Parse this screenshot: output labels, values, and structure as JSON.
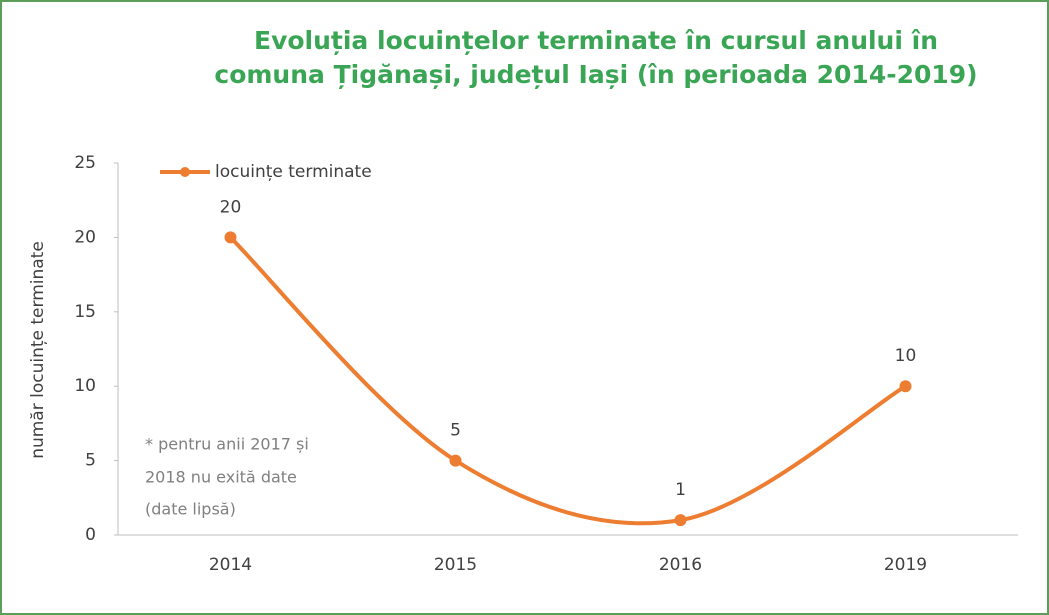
{
  "chart_data": {
    "type": "line",
    "title": [
      "Evoluția locuințelor terminate în cursul anului în",
      "comuna Țigănași, județul Iași (în perioada 2014-2019)"
    ],
    "y_label": "număr locuințe terminate",
    "categories": [
      "2014",
      "2015",
      "2016",
      "2019"
    ],
    "series": [
      {
        "name": "locuințe terminate",
        "color": "#ed7d31",
        "values": [
          20,
          5,
          1,
          10
        ]
      }
    ],
    "ylim": [
      0,
      25
    ],
    "yticks": [
      0,
      5,
      10,
      15,
      20,
      25
    ],
    "grid": false,
    "legend": "top-left",
    "annotation": [
      "* pentru anii 2017 și",
      "2018 nu exită date",
      "(date lipsă)"
    ]
  }
}
